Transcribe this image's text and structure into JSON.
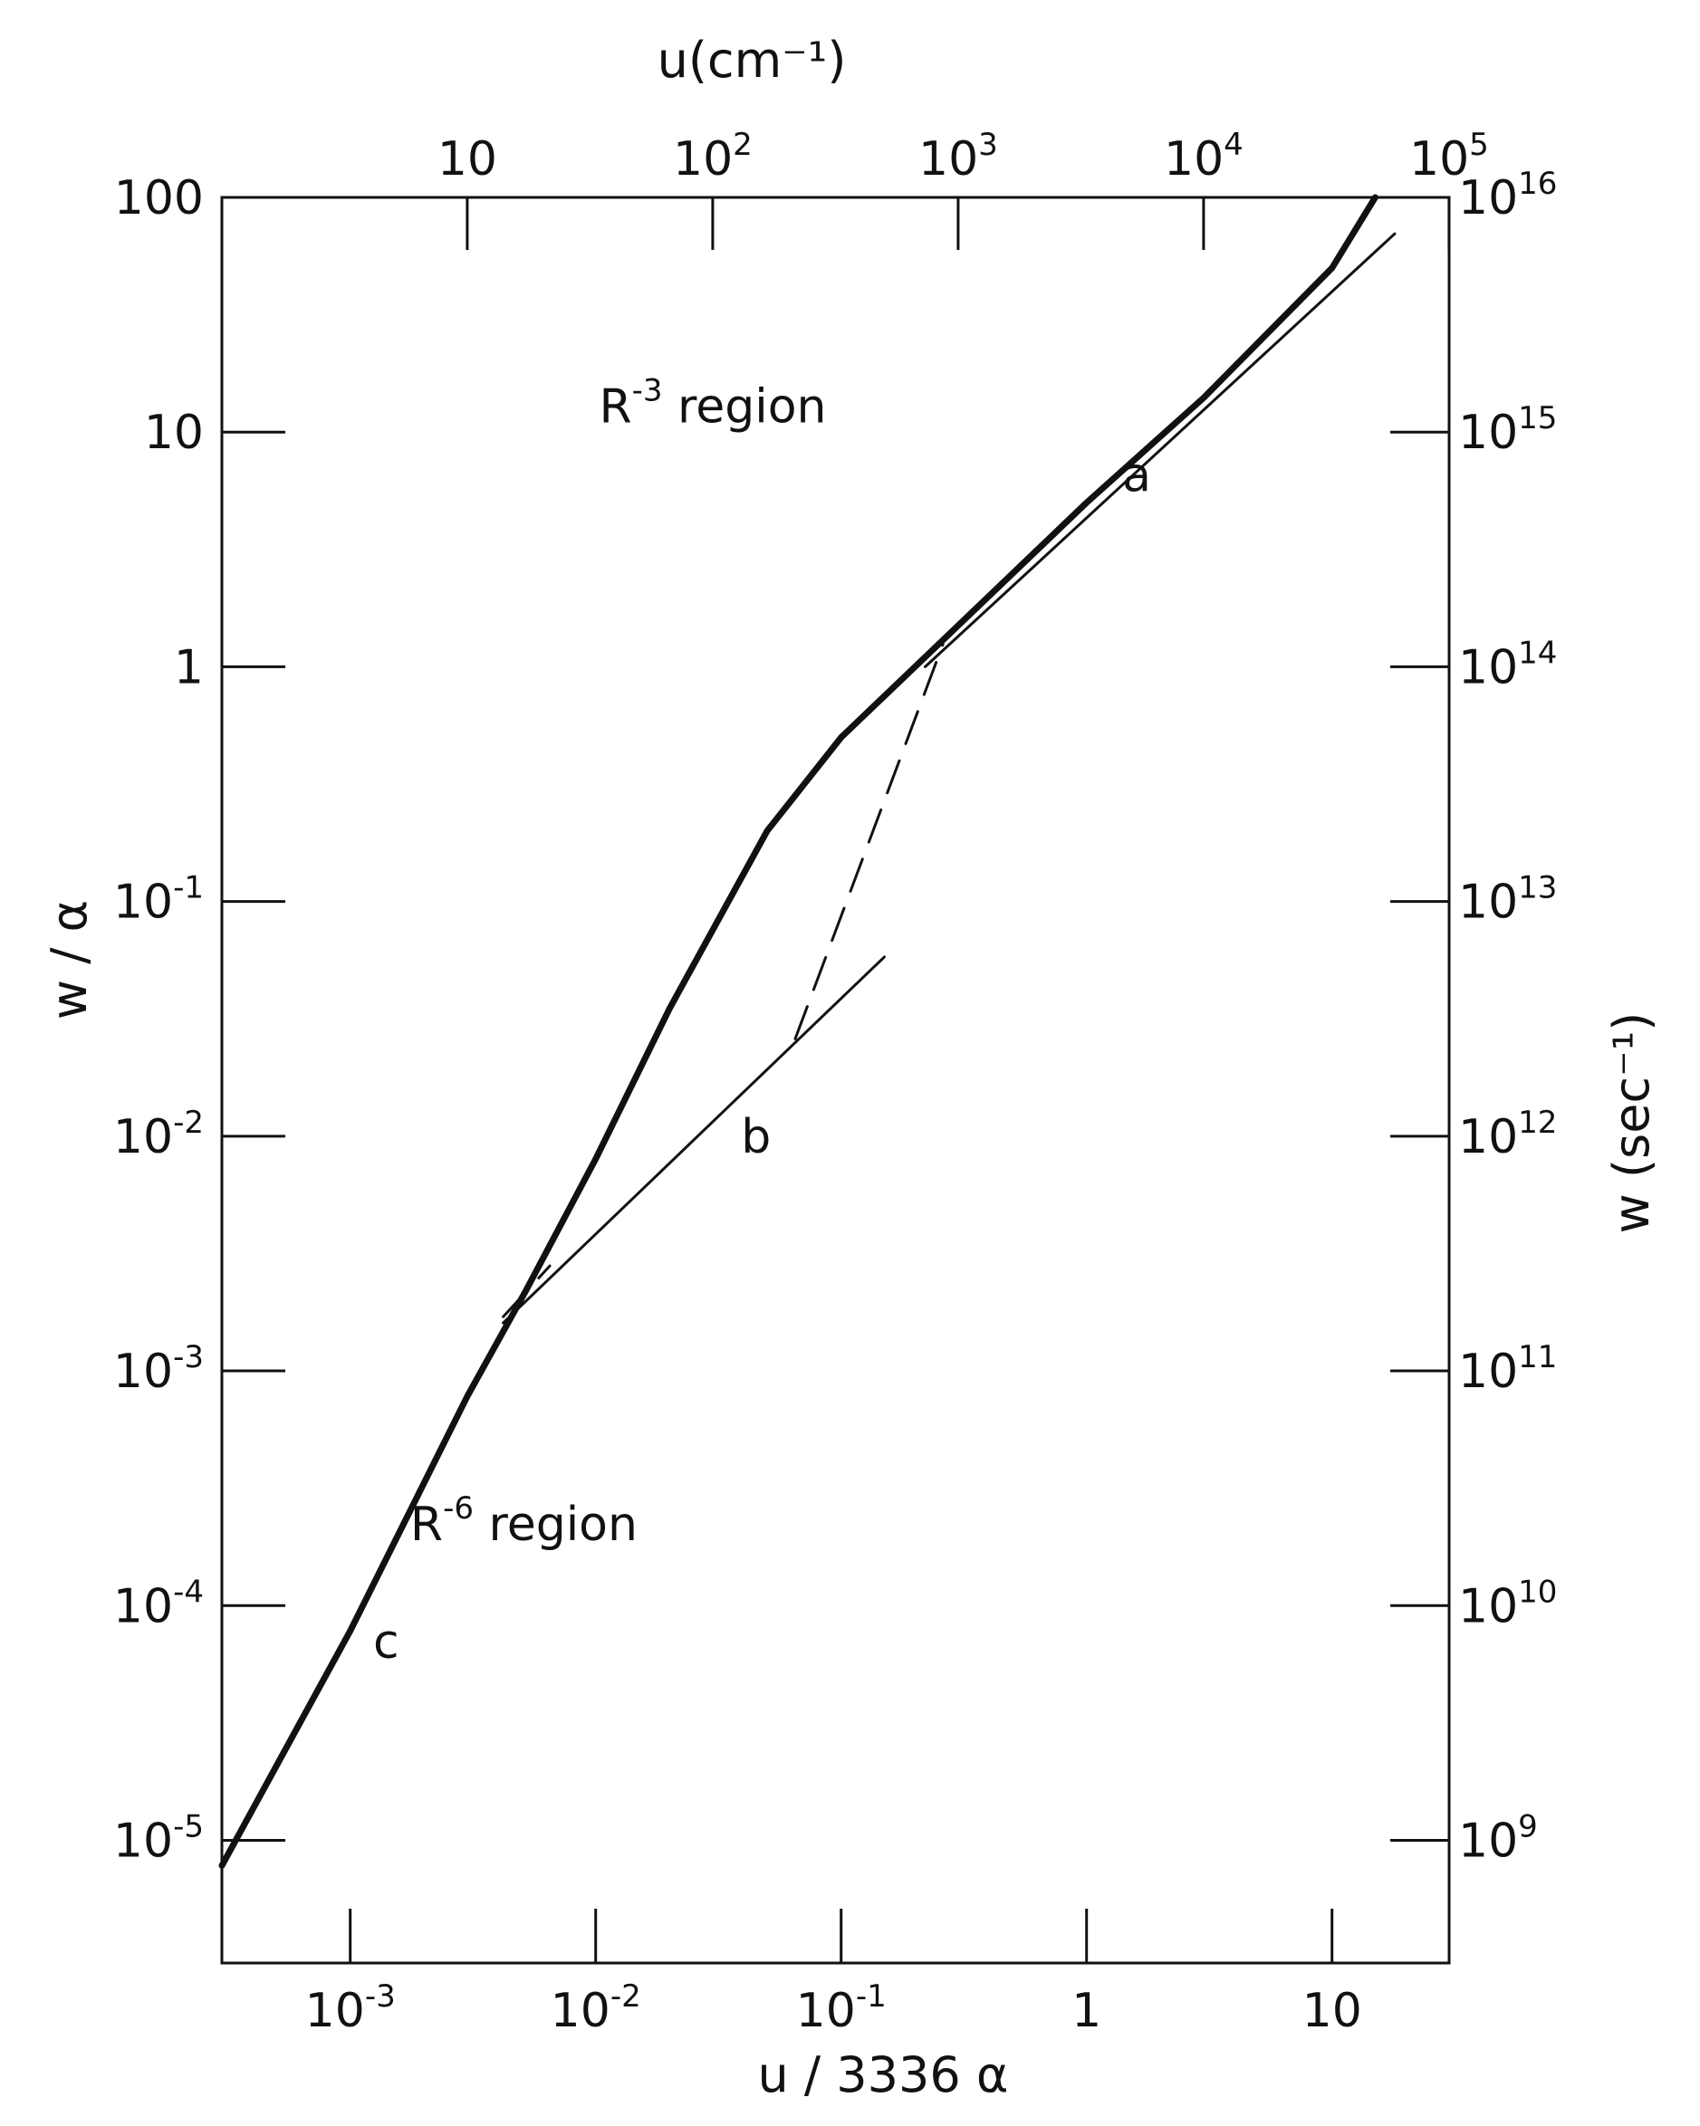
{
  "chart_data": {
    "type": "line",
    "title": "",
    "x_scale": "log",
    "y_scale": "log",
    "grid": false,
    "xlim": [
      0.0003,
      30
    ],
    "ylim": [
      3e-06,
      100
    ],
    "xlabel": "u / 3336 α",
    "ylabel": "w / α",
    "top_axis": {
      "label": "u(cm⁻¹)",
      "ticks": [
        {
          "base": "10",
          "exp": "",
          "value": 10
        },
        {
          "base": "10",
          "exp": "2",
          "value": 100
        },
        {
          "base": "10",
          "exp": "3",
          "value": 1000
        },
        {
          "base": "10",
          "exp": "4",
          "value": 10000
        },
        {
          "base": "10",
          "exp": "5",
          "value": 100000
        }
      ]
    },
    "right_axis": {
      "label": "w (sec⁻¹)",
      "ticks": [
        {
          "base": "10",
          "exp": "16",
          "value": 1e+16
        },
        {
          "base": "10",
          "exp": "15",
          "value": 1000000000000000.0
        },
        {
          "base": "10",
          "exp": "14",
          "value": 100000000000000.0
        },
        {
          "base": "10",
          "exp": "13",
          "value": 10000000000000.0
        },
        {
          "base": "10",
          "exp": "12",
          "value": 1000000000000.0
        },
        {
          "base": "10",
          "exp": "11",
          "value": 100000000000.0
        },
        {
          "base": "10",
          "exp": "10",
          "value": 10000000000.0
        },
        {
          "base": "10",
          "exp": "9",
          "value": 1000000000.0
        }
      ]
    },
    "bottom_ticks": [
      {
        "base": "10",
        "exp": "-3",
        "value": 0.001
      },
      {
        "base": "10",
        "exp": "-2",
        "value": 0.01
      },
      {
        "base": "10",
        "exp": "-1",
        "value": 0.1
      },
      {
        "base": "1",
        "exp": "",
        "value": 1
      },
      {
        "base": "10",
        "exp": "",
        "value": 10
      }
    ],
    "left_ticks": [
      {
        "base": "100",
        "exp": "",
        "value": 100
      },
      {
        "base": "10",
        "exp": "",
        "value": 10
      },
      {
        "base": "1",
        "exp": "",
        "value": 1
      },
      {
        "base": "10",
        "exp": "-1",
        "value": 0.1
      },
      {
        "base": "10",
        "exp": "-2",
        "value": 0.01
      },
      {
        "base": "10",
        "exp": "-3",
        "value": 0.001
      },
      {
        "base": "10",
        "exp": "-4",
        "value": 0.0001
      },
      {
        "base": "10",
        "exp": "-5",
        "value": 1e-05
      }
    ],
    "regions": [
      {
        "base": "R",
        "exp": "-3",
        "rest": " region",
        "x": 0.03,
        "y": 11
      },
      {
        "base": "R",
        "exp": "-6",
        "rest": " region",
        "x": 0.0051,
        "y": 0.00019
      }
    ],
    "series": [
      {
        "id": "main",
        "style": "bold",
        "points": [
          [
            0.0003,
            7.8e-06
          ],
          [
            0.001,
            7.8e-05
          ],
          [
            0.003,
            0.00078
          ],
          [
            0.0052,
            0.0022
          ],
          [
            0.01,
            0.008
          ],
          [
            0.02,
            0.035
          ],
          [
            0.05,
            0.2
          ],
          [
            0.1,
            0.5
          ],
          [
            0.2,
            1.0
          ],
          [
            0.5,
            2.5
          ],
          [
            1.0,
            5.0
          ],
          [
            3.0,
            14.0
          ],
          [
            10.0,
            50.0
          ],
          [
            15.0,
            100.0
          ]
        ]
      },
      {
        "id": "a",
        "label": "a",
        "style": "thin",
        "label_pos": [
          1.6,
          5.6
        ],
        "points": [
          [
            0.22,
            1.0
          ],
          [
            18.0,
            70.0
          ]
        ]
      },
      {
        "id": "b",
        "label": "b",
        "style": "thin",
        "label_pos": [
          0.045,
          0.0085
        ],
        "points": [
          [
            0.0042,
            0.0016
          ],
          [
            0.15,
            0.058
          ]
        ]
      },
      {
        "id": "c",
        "label": "c",
        "style": "none",
        "label_pos": [
          0.0014,
          6e-05
        ],
        "points": []
      },
      {
        "id": "transition-ab",
        "style": "dashed",
        "points": [
          [
            0.065,
            0.026
          ],
          [
            0.26,
            1.25
          ]
        ]
      },
      {
        "id": "transition-bc",
        "style": "dashed",
        "points": [
          [
            0.0042,
            0.0017
          ],
          [
            0.0065,
            0.0028
          ]
        ]
      }
    ]
  }
}
